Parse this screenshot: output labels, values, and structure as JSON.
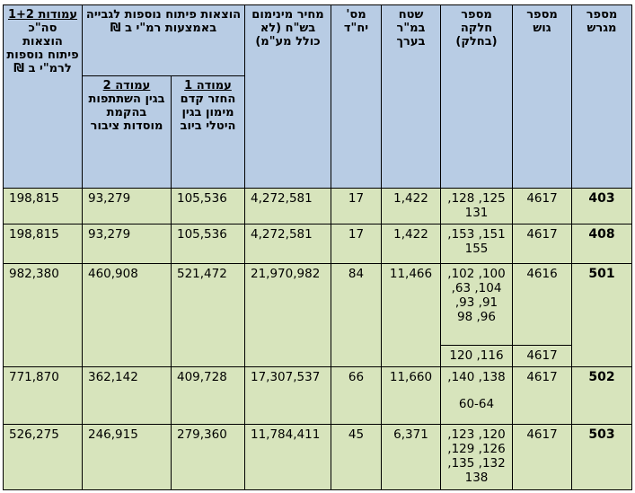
{
  "headers": {
    "col_plot": "מספר מגרש",
    "col_block": "מספר גוש",
    "col_parcel": "מספר חלקה (בחלק)",
    "col_area": "שטח במ\"ר בערך",
    "col_units": "מס' יח\"ד",
    "col_price": "מחיר מינימום בש\"ח (לא כולל מע\"מ)",
    "col_dev_group": "הוצאות פיתוח נוספות לגבייה באמצעות רמ\"י ב ₪",
    "col_dev1_title": "עמודה 1",
    "col_dev1_text": "החזר קדם מימון בגין היטלי ביוב",
    "col_dev2_title": "עמודה 2",
    "col_dev2_text": "בגין השתתפות בהקמת מוסדות ציבור",
    "col_total_title": "עמודות 1+2",
    "col_total_text": "סה\"כ הוצאות פיתוח נוספות לרמ\"י ב ₪"
  },
  "rows": [
    {
      "plot": "403",
      "block": "4617",
      "parcel": "125, 128, 131",
      "area": "1,422",
      "units": "17",
      "price": "4,272,581",
      "dev1": "105,536",
      "dev2": "93,279",
      "total": "198,815"
    },
    {
      "plot": "408",
      "block": "4617",
      "parcel": "151, 153, 155",
      "area": "1,422",
      "units": "17",
      "price": "4,272,581",
      "dev1": "105,536",
      "dev2": "93,279",
      "total": "198,815"
    },
    {
      "plot": "501",
      "block": "4616",
      "parcel": "100, 102, 104, 63, 91, 93, 96, 98",
      "block2": "4617",
      "parcel2": "116, 120",
      "area": "11,466",
      "units": "84",
      "price": "21,970,982",
      "dev1": "521,472",
      "dev2": "460,908",
      "total": "982,380"
    },
    {
      "plot": "502",
      "block": "4617",
      "parcel": "138, 140,",
      "parcel_b": "60-64",
      "area": "11,660",
      "units": "66",
      "price": "17,307,537",
      "dev1": "409,728",
      "dev2": "362,142",
      "total": "771,870"
    },
    {
      "plot": "503",
      "block": "4617",
      "parcel": "120, 123, 126, 129, 132, 135, 138",
      "area": "6,371",
      "units": "45",
      "price": "11,784,411",
      "dev1": "279,360",
      "dev2": "246,915",
      "total": "526,275"
    }
  ]
}
